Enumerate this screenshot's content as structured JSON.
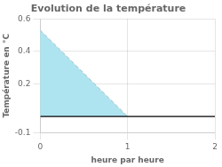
{
  "chart_data": {
    "type": "line",
    "title": "Evolution de la température",
    "x_label": "heure par heure",
    "y_label": "Température en °C",
    "xlim": [
      0,
      2
    ],
    "ylim": [
      -0.1,
      0.6
    ],
    "xticks": [
      0,
      1,
      2
    ],
    "yticks": [
      -0.1,
      0.2,
      0.4,
      0.6
    ],
    "grid": true,
    "series": [
      {
        "type": "area",
        "color": "#aee4f0",
        "x": [
          0,
          1,
          1,
          0
        ],
        "values": [
          0.53,
          0.0,
          0.0,
          0.0
        ]
      },
      {
        "type": "line",
        "color": "#88ccdd",
        "line_style": "dashed",
        "x": [
          0,
          1
        ],
        "values": [
          0.53,
          0.0
        ]
      },
      {
        "type": "line",
        "color": "#000000",
        "line_style": "solid",
        "x": [
          0,
          2
        ],
        "values": [
          0.0,
          0.0
        ]
      }
    ]
  }
}
